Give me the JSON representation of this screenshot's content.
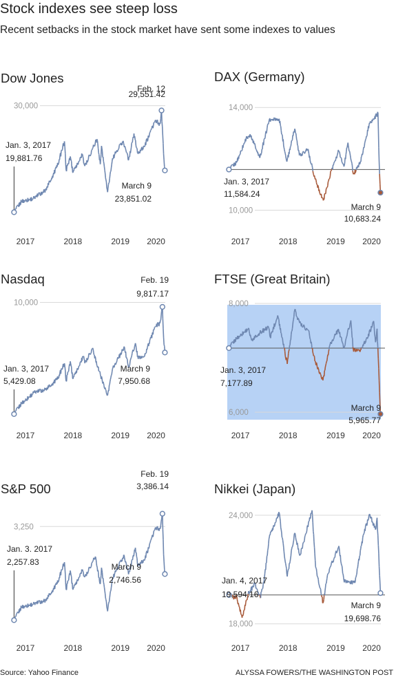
{
  "header": {
    "title": "Stock indexes see steep loss",
    "subtitle": "Recent setbacks in the stock market have sent some indexes to values"
  },
  "footer": {
    "source": "Source: Yahoo Finance",
    "credit": "ALYSSA FOWERS/THE WASHINGTON POST"
  },
  "colors": {
    "line": "#6e87b0",
    "below": "#a85a3a",
    "highlight": "#b7d2f5",
    "grid": "#d9d9d9"
  },
  "chart_data": [
    {
      "type": "line",
      "title": "Dow Jones",
      "ylim": [
        18800,
        30500
      ],
      "x_ticks": [
        "2017",
        "2018",
        "2019",
        "2020"
      ],
      "y_ticks": [
        {
          "value": 30000,
          "label": "30,000"
        }
      ],
      "baseline": null,
      "highlight": false,
      "series": [
        {
          "x": [
            "2017-01-03",
            "2017-03-01",
            "2017-06-01",
            "2017-09-01",
            "2017-12-01",
            "2018-01-26",
            "2018-02-08",
            "2018-03-12",
            "2018-04-02",
            "2018-06-11",
            "2018-07-02",
            "2018-10-03",
            "2018-10-29",
            "2018-11-07",
            "2018-12-24",
            "2019-01-31",
            "2019-04-23",
            "2019-06-03",
            "2019-07-15",
            "2019-08-14",
            "2019-10-02",
            "2019-12-27",
            "2020-01-31",
            "2020-02-12",
            "2020-02-28",
            "2020-03-09"
          ],
          "y": [
            19881.76,
            20900,
            21200,
            21950,
            24200,
            26616,
            23860,
            25180,
            23644,
            25320,
            24270,
            26828,
            24440,
            26180,
            21792,
            25000,
            26656,
            24820,
            27360,
            25480,
            26080,
            28645,
            28256,
            29551.42,
            25409,
            23851.02
          ]
        }
      ],
      "annotations": [
        {
          "label": "Jan. 3, 2017",
          "value": "19,881.76"
        },
        {
          "label": "Feb. 12",
          "value": "29,551.42"
        },
        {
          "label": "March 9",
          "value": "23,851.02"
        }
      ]
    },
    {
      "type": "line",
      "title": "DAX (Germany)",
      "ylim": [
        9800,
        14300
      ],
      "x_ticks": [
        "2017",
        "2018",
        "2019",
        "2020"
      ],
      "y_ticks": [
        {
          "value": 14000,
          "label": "14,000"
        },
        {
          "value": 10000,
          "label": "10,000"
        }
      ],
      "baseline": 11584.24,
      "highlight": false,
      "series": [
        {
          "x": [
            "2017-01-03",
            "2017-03-01",
            "2017-05-15",
            "2017-06-20",
            "2017-08-29",
            "2017-11-07",
            "2018-01-23",
            "2018-03-23",
            "2018-05-22",
            "2018-06-27",
            "2018-08-30",
            "2018-10-26",
            "2018-12-27",
            "2019-02-27",
            "2019-04-24",
            "2019-06-03",
            "2019-07-04",
            "2019-08-15",
            "2019-10-08",
            "2019-12-16",
            "2020-01-17",
            "2020-02-19",
            "2020-02-28",
            "2020-03-09"
          ],
          "y": [
            11584.24,
            11850,
            12800,
            12900,
            12050,
            13500,
            13560,
            11890,
            13170,
            12130,
            12370,
            11200,
            10380,
            11540,
            12300,
            11700,
            12630,
            11400,
            11900,
            13400,
            13530,
            13790,
            11890,
            10683.24
          ]
        }
      ],
      "annotations": [
        {
          "label": "Jan. 3, 2017",
          "value": "11,584.24"
        },
        {
          "label": "March 9",
          "value": "10,683.24"
        }
      ]
    },
    {
      "type": "line",
      "title": "Nasdaq",
      "ylim": [
        5200,
        10100
      ],
      "x_ticks": [
        "2017",
        "2018",
        "2019",
        "2020"
      ],
      "y_ticks": [
        {
          "value": 10000,
          "label": "10,000"
        }
      ],
      "baseline": null,
      "highlight": false,
      "series": [
        {
          "x": [
            "2017-01-03",
            "2017-03-01",
            "2017-06-08",
            "2017-09-01",
            "2017-12-01",
            "2018-01-26",
            "2018-02-08",
            "2018-03-12",
            "2018-04-02",
            "2018-06-20",
            "2018-07-02",
            "2018-08-29",
            "2018-10-29",
            "2018-12-24",
            "2019-01-31",
            "2019-05-03",
            "2019-06-03",
            "2019-07-26",
            "2019-08-14",
            "2019-10-02",
            "2019-12-27",
            "2020-01-31",
            "2020-02-19",
            "2020-02-28",
            "2020-03-09"
          ],
          "y": [
            5429.08,
            5860,
            6321,
            6430,
            6840,
            7505,
            6777,
            7588,
            6870,
            7782,
            7510,
            8109,
            7050,
            6193,
            7280,
            8164,
            7333,
            8330,
            7770,
            7785,
            9022,
            9150,
            9817.17,
            8567,
            7950.68
          ]
        }
      ],
      "annotations": [
        {
          "label": "Jan. 3, 2017",
          "value": "5,429.08"
        },
        {
          "label": "Feb. 19",
          "value": "9,817.17"
        },
        {
          "label": "March 9",
          "value": "7,950.68"
        }
      ]
    },
    {
      "type": "line",
      "title": "FTSE (Great Britain)",
      "ylim": [
        5900,
        8050
      ],
      "x_ticks": [
        "2017",
        "2018",
        "2019",
        "2020"
      ],
      "y_ticks": [
        {
          "value": 8000,
          "label": "8,000"
        },
        {
          "value": 6000,
          "label": "6,000"
        }
      ],
      "baseline": 7177.89,
      "highlight": true,
      "series": [
        {
          "x": [
            "2017-01-03",
            "2017-03-01",
            "2017-06-01",
            "2017-06-26",
            "2017-08-29",
            "2017-11-02",
            "2017-11-16",
            "2018-01-12",
            "2018-03-26",
            "2018-05-22",
            "2018-06-29",
            "2018-09-04",
            "2018-10-26",
            "2018-12-24",
            "2019-02-15",
            "2019-04-23",
            "2019-06-03",
            "2019-07-26",
            "2019-08-14",
            "2019-10-08",
            "2019-11-29",
            "2020-01-17",
            "2020-01-31",
            "2020-02-12",
            "2020-02-28",
            "2020-03-09"
          ],
          "y": [
            7177.89,
            7350,
            7540,
            7320,
            7460,
            7560,
            7380,
            7779,
            6888,
            7877,
            7640,
            7500,
            6940,
            6585,
            7230,
            7520,
            7180,
            7687,
            7150,
            7150,
            7350,
            7675,
            7286,
            7534,
            6581,
            5965.77
          ]
        }
      ],
      "annotations": [
        {
          "label": "Jan. 3, 2017",
          "value": "7,177.89"
        },
        {
          "label": "March 9",
          "value": "5,965.77"
        }
      ]
    },
    {
      "type": "line",
      "title": "S&P 500",
      "ylim": [
        2180,
        3420
      ],
      "x_ticks": [
        "2017",
        "2018",
        "2019",
        "2020"
      ],
      "y_ticks": [
        {
          "value": 3250,
          "label": "3,250"
        }
      ],
      "baseline": null,
      "highlight": false,
      "series": [
        {
          "x": [
            "2017-01-03",
            "2017-03-01",
            "2017-06-01",
            "2017-09-01",
            "2017-12-01",
            "2018-01-26",
            "2018-02-08",
            "2018-03-12",
            "2018-04-02",
            "2018-06-11",
            "2018-07-02",
            "2018-09-20",
            "2018-10-29",
            "2018-11-07",
            "2018-12-24",
            "2019-01-31",
            "2019-04-30",
            "2019-06-03",
            "2019-07-26",
            "2019-08-14",
            "2019-10-02",
            "2019-12-27",
            "2020-01-31",
            "2020-02-19",
            "2020-02-28",
            "2020-03-09"
          ],
          "y": [
            2257.83,
            2395,
            2430,
            2465,
            2642,
            2872,
            2581,
            2783,
            2581,
            2782,
            2713,
            2930,
            2641,
            2813,
            2351,
            2704,
            2945,
            2744,
            3025,
            2840,
            2888,
            3240,
            3225,
            3386.14,
            2954,
            2746.56
          ]
        }
      ],
      "annotations": [
        {
          "label": "Jan. 3. 2017",
          "value": "2,257.83"
        },
        {
          "label": "Feb. 19",
          "value": "3,386.14"
        },
        {
          "label": "March 9",
          "value": "2,746.56"
        }
      ]
    },
    {
      "type": "line",
      "title": "Nikkei (Japan)",
      "ylim": [
        17800,
        24300
      ],
      "x_ticks": [
        "2017",
        "2018",
        "2019",
        "2020"
      ],
      "y_ticks": [
        {
          "value": 24000,
          "label": "24,000"
        },
        {
          "value": 18000,
          "label": "18,000"
        }
      ],
      "baseline": 19594.16,
      "highlight": false,
      "series": [
        {
          "x": [
            "2017-01-04",
            "2017-02-15",
            "2017-03-01",
            "2017-04-14",
            "2017-05-31",
            "2017-07-20",
            "2017-08-31",
            "2017-09-29",
            "2017-11-09",
            "2018-01-23",
            "2018-03-26",
            "2018-05-21",
            "2018-07-02",
            "2018-10-02",
            "2018-10-29",
            "2018-12-25",
            "2019-01-31",
            "2019-04-25",
            "2019-06-03",
            "2019-08-26",
            "2019-10-31",
            "2019-12-17",
            "2020-01-31",
            "2020-02-12",
            "2020-03-09"
          ],
          "y": [
            19594.16,
            19400,
            19500,
            18340,
            19650,
            20200,
            19450,
            20356,
            22800,
            24124,
            20617,
            23000,
            21800,
            24270,
            21150,
            19155,
            20773,
            22300,
            20410,
            20260,
            22927,
            24066,
            23205,
            23860,
            19698.76
          ]
        }
      ],
      "annotations": [
        {
          "label": "Jan. 4, 2017",
          "value": "19,594.16"
        },
        {
          "label": "March 9",
          "value": "19,698.76"
        }
      ]
    }
  ]
}
